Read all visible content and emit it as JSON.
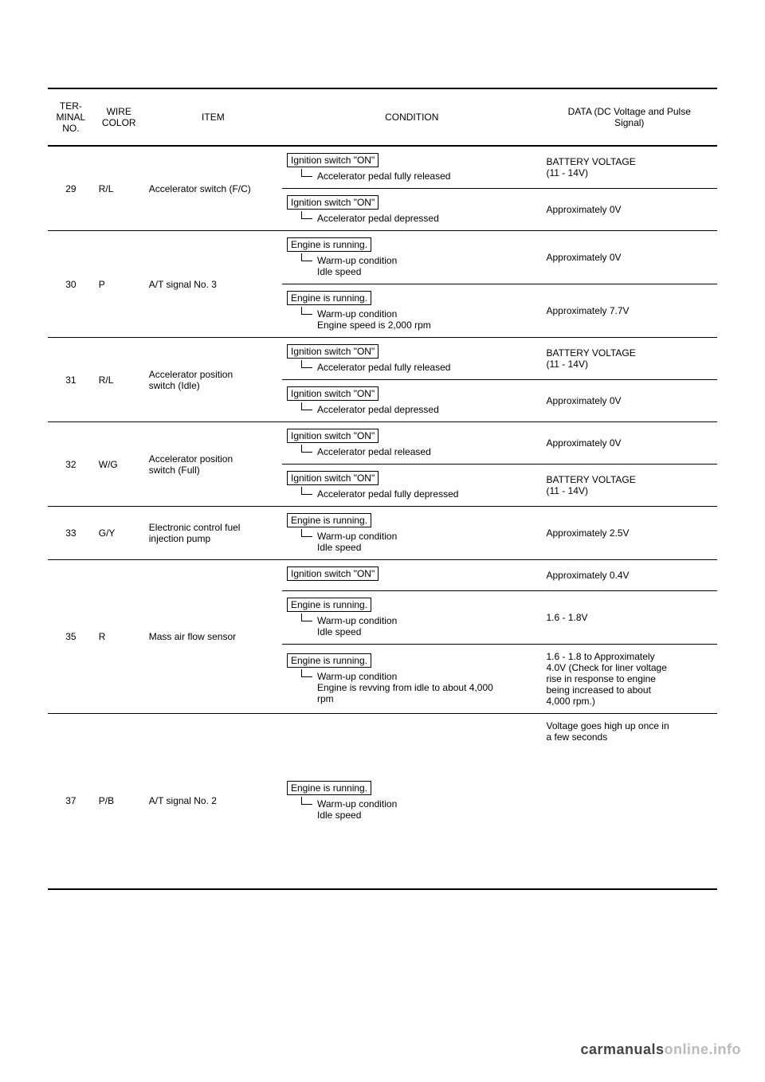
{
  "headers": {
    "terminal": "TER-\nMINAL\nNO.",
    "wire": "WIRE\nCOLOR",
    "item": "ITEM",
    "condition": "CONDITION",
    "data": "DATA (DC Voltage and Pulse\nSignal)"
  },
  "rows": [
    {
      "terminal": "29",
      "wire": "R/L",
      "item": "Accelerator switch (F/C)",
      "conditions": [
        {
          "box": "Ignition switch \"ON\"",
          "sub": "Accelerator pedal fully released",
          "data": "BATTERY VOLTAGE\n(11 - 14V)"
        },
        {
          "box": "Ignition switch \"ON\"",
          "sub": "Accelerator pedal depressed",
          "data": "Approximately 0V"
        }
      ]
    },
    {
      "terminal": "30",
      "wire": "P",
      "item": "A/T signal No. 3",
      "conditions": [
        {
          "box": "Engine is running.",
          "sub": "Warm-up condition\nIdle speed",
          "data": "Approximately 0V"
        },
        {
          "box": "Engine is running.",
          "sub": "Warm-up condition\nEngine speed is 2,000 rpm",
          "data": "Approximately 7.7V"
        }
      ]
    },
    {
      "terminal": "31",
      "wire": "R/L",
      "item": "Accelerator position\nswitch (Idle)",
      "conditions": [
        {
          "box": "Ignition switch \"ON\"",
          "sub": "Accelerator pedal fully released",
          "data": "BATTERY VOLTAGE\n(11 - 14V)"
        },
        {
          "box": "Ignition switch \"ON\"",
          "sub": "Accelerator pedal depressed",
          "data": "Approximately 0V"
        }
      ]
    },
    {
      "terminal": "32",
      "wire": "W/G",
      "item": "Accelerator position\nswitch (Full)",
      "conditions": [
        {
          "box": "Ignition switch \"ON\"",
          "sub": "Accelerator pedal released",
          "data": "Approximately 0V"
        },
        {
          "box": "Ignition switch \"ON\"",
          "sub": "Accelerator pedal fully depressed",
          "data": "BATTERY VOLTAGE\n(11 - 14V)"
        }
      ]
    },
    {
      "terminal": "33",
      "wire": "G/Y",
      "item": "Electronic control fuel\ninjection pump",
      "conditions": [
        {
          "box": "Engine is running.",
          "sub": "Warm-up condition\nIdle speed",
          "data": "Approximately 2.5V"
        }
      ]
    },
    {
      "terminal": "35",
      "wire": "R",
      "item": "Mass air flow sensor",
      "conditions": [
        {
          "box": "Ignition switch \"ON\"",
          "sub": null,
          "data": "Approximately 0.4V"
        },
        {
          "box": "Engine is running.",
          "sub": "Warm-up condition\nIdle speed",
          "data": "1.6 - 1.8V"
        },
        {
          "box": "Engine is running.",
          "sub": "Warm-up condition\nEngine is revving from idle to about 4,000\nrpm",
          "data": "1.6 - 1.8 to Approximately\n4.0V (Check for liner voltage\nrise in response to engine\nbeing increased to about\n4,000 rpm.)"
        }
      ]
    },
    {
      "terminal": "37",
      "wire": "P/B",
      "item": "A/T signal No. 2",
      "tall": true,
      "conditions": [
        {
          "box": "Engine is running.",
          "sub": "Warm-up condition\nIdle speed",
          "data": "Voltage goes high up once in\na few seconds"
        }
      ]
    }
  ],
  "footer": {
    "dark": "carmanuals",
    "light": "online.info"
  }
}
